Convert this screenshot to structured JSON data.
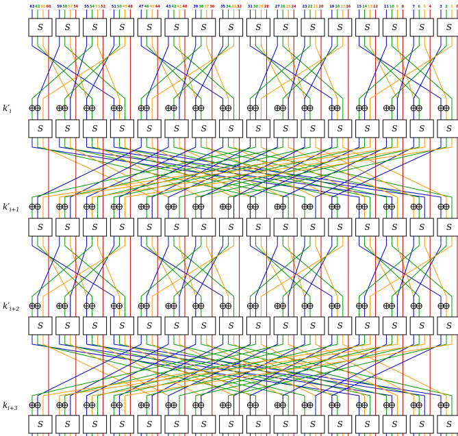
{
  "bit_labels": [
    "63",
    "62",
    "61",
    "60",
    "59",
    "58",
    "57",
    "56",
    "55",
    "54",
    "53",
    "52",
    "51",
    "50",
    "49",
    "48",
    "47",
    "46",
    "45",
    "44",
    "43",
    "42",
    "41",
    "40",
    "39",
    "38",
    "37",
    "36",
    "35",
    "34",
    "33",
    "32",
    "31",
    "30",
    "29",
    "28",
    "27",
    "26",
    "25",
    "24",
    "23",
    "22",
    "21",
    "20",
    "19",
    "18",
    "17",
    "16",
    "15",
    "14",
    "13",
    "12",
    "11",
    "10",
    "9",
    "8",
    "7",
    "6",
    "5",
    "4",
    "3",
    "2",
    "1",
    "0"
  ],
  "sbox_label": "S",
  "round_keys": [
    {
      "base": "k",
      "prime": "′",
      "sub": "i"
    },
    {
      "base": "k",
      "prime": "′",
      "sub": "i+1"
    },
    {
      "base": "k",
      "prime": "′",
      "sub": "i+2"
    },
    {
      "base": "k",
      "prime": "",
      "sub": "i+3"
    }
  ],
  "xor_symbol": "⊕",
  "wire_colors": {
    "bit0": "#0000cc",
    "bit1": "#009900",
    "bit2": "#ff9900",
    "bit3": "#cc0000"
  }
}
